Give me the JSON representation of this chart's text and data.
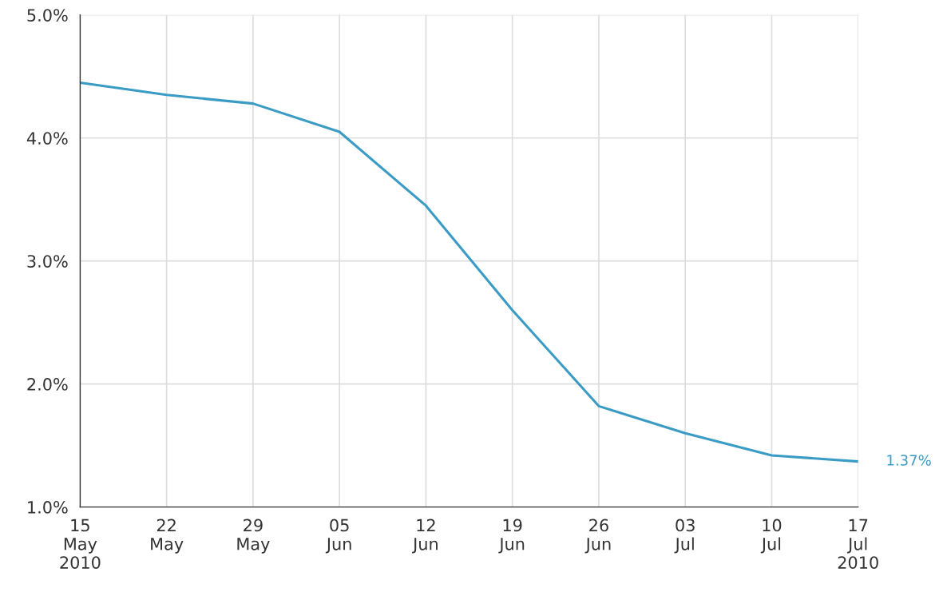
{
  "chart_data": {
    "type": "line",
    "x": [
      "2010-05-15",
      "2010-05-22",
      "2010-05-29",
      "2010-06-05",
      "2010-06-12",
      "2010-06-19",
      "2010-06-26",
      "2010-07-03",
      "2010-07-10",
      "2010-07-17"
    ],
    "series": [
      {
        "color": "#3a9cc4",
        "values": [
          4.45,
          4.35,
          4.28,
          4.05,
          3.45,
          2.6,
          1.82,
          1.6,
          1.42,
          1.37
        ]
      }
    ],
    "xlim": [
      "2010-05-15",
      "2010-07-17"
    ],
    "xticks": [
      {
        "value": "2010-05-15",
        "label": "15\nMay\n2010"
      },
      {
        "value": "2010-05-22",
        "label": "22\nMay"
      },
      {
        "value": "2010-05-29",
        "label": "29\nMay"
      },
      {
        "value": "2010-06-05",
        "label": "05\nJun"
      },
      {
        "value": "2010-06-12",
        "label": "12\nJun"
      },
      {
        "value": "2010-06-19",
        "label": "19\nJun"
      },
      {
        "value": "2010-06-26",
        "label": "26\nJun"
      },
      {
        "value": "2010-07-03",
        "label": "03\nJul"
      },
      {
        "value": "2010-07-10",
        "label": "10\nJul"
      },
      {
        "value": "2010-07-17",
        "label": "17\nJul\n2010"
      }
    ],
    "ylim": [
      1.0,
      5.0
    ],
    "yticks": [
      {
        "value": 1.0,
        "label": "1.0%"
      },
      {
        "value": 2.0,
        "label": "2.0%"
      },
      {
        "value": 3.0,
        "label": "3.0%"
      },
      {
        "value": 4.0,
        "label": "4.0%"
      },
      {
        "value": 5.0,
        "label": "5.0%"
      }
    ],
    "annotations": [
      {
        "text": "1.37%",
        "x": "2010-07-17",
        "y": 1.37
      }
    ],
    "grid": true,
    "line_style": "solid"
  }
}
